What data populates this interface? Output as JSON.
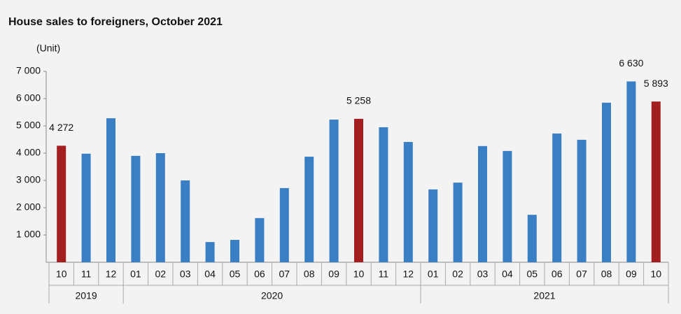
{
  "chart_data": {
    "type": "bar",
    "title": "House sales to foreigners, October 2021",
    "y_unit": "(Unit)",
    "groups": [
      {
        "label": "2019",
        "categories": [
          "10",
          "11",
          "12"
        ]
      },
      {
        "label": "2020",
        "categories": [
          "01",
          "02",
          "03",
          "04",
          "05",
          "06",
          "07",
          "08",
          "09",
          "10",
          "11",
          "12"
        ]
      },
      {
        "label": "2021",
        "categories": [
          "01",
          "02",
          "03",
          "04",
          "05",
          "06",
          "07",
          "08",
          "09",
          "10"
        ]
      }
    ],
    "values": [
      4272,
      3980,
      5280,
      3900,
      4000,
      3000,
      740,
      820,
      1620,
      2720,
      3870,
      5230,
      5258,
      4950,
      4410,
      2670,
      2920,
      4260,
      4080,
      1740,
      4720,
      4490,
      5850,
      6630,
      5893
    ],
    "value_labels": [
      "4 272",
      null,
      null,
      null,
      null,
      null,
      null,
      null,
      null,
      null,
      null,
      null,
      "5 258",
      null,
      null,
      null,
      null,
      null,
      null,
      null,
      null,
      null,
      null,
      "6 630",
      "5 893"
    ],
    "colors": [
      "#a31f1f",
      "#3a7fc4",
      "#3a7fc4",
      "#3a7fc4",
      "#3a7fc4",
      "#3a7fc4",
      "#3a7fc4",
      "#3a7fc4",
      "#3a7fc4",
      "#3a7fc4",
      "#3a7fc4",
      "#3a7fc4",
      "#a31f1f",
      "#3a7fc4",
      "#3a7fc4",
      "#3a7fc4",
      "#3a7fc4",
      "#3a7fc4",
      "#3a7fc4",
      "#3a7fc4",
      "#3a7fc4",
      "#3a7fc4",
      "#3a7fc4",
      "#3a7fc4",
      "#a31f1f"
    ],
    "ylim": [
      0,
      7000
    ],
    "yticks": [
      {
        "value": 1000,
        "label": "1 000"
      },
      {
        "value": 2000,
        "label": "2 000"
      },
      {
        "value": 3000,
        "label": "3 000"
      },
      {
        "value": 4000,
        "label": "4 000"
      },
      {
        "value": 5000,
        "label": "5 000"
      },
      {
        "value": 6000,
        "label": "6 000"
      },
      {
        "value": 7000,
        "label": "7 000"
      }
    ]
  }
}
